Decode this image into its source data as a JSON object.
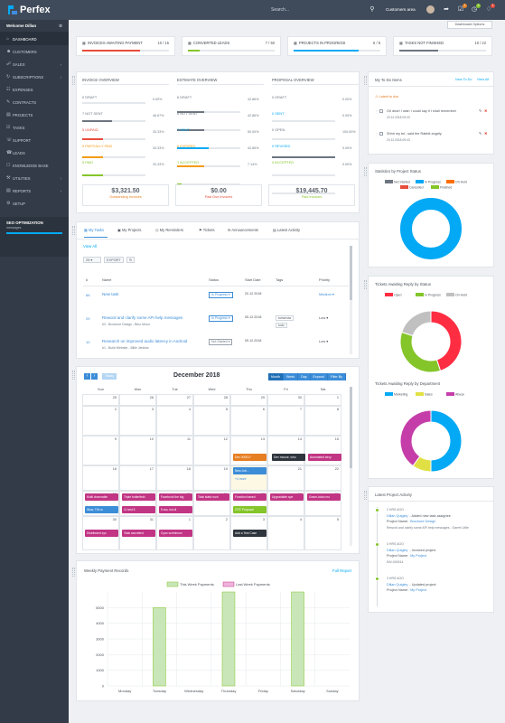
{
  "app": {
    "brand": "Perfex",
    "search_placeholder": "Search...",
    "customers_area": "Customers area",
    "dashboard_options": "Dashboard Options"
  },
  "badges": {
    "b1": "1",
    "b2": "3",
    "b3": "1"
  },
  "sidebar": {
    "user": "Welcome Dillan",
    "items": [
      "DASHBOARD",
      "CUSTOMERS",
      "SALES",
      "SUBSCRIPTIONS",
      "EXPENSES",
      "CONTRACTS",
      "PROJECTS",
      "TASKS",
      "SUPPORT",
      "LEADS",
      "KNOWLEDGE BASE",
      "UTILITIES",
      "REPORTS",
      "SETUP"
    ],
    "seo_title": "SEO OPTIMIZATION",
    "seo_sub": "messages"
  },
  "stats": [
    {
      "label": "INVOICES AWAITING PAYMENT",
      "value": "10 / 15",
      "color": "#e74c3c",
      "fill": 0.67
    },
    {
      "label": "CONVERTED LEADS",
      "value": "7 / 50",
      "color": "#84c529",
      "fill": 0.14
    },
    {
      "label": "PROJECTS IN PROGRESS",
      "value": "6 / 8",
      "color": "#03a9f4",
      "fill": 0.75
    },
    {
      "label": "TASKS NOT FINISHED",
      "value": "10 / 22",
      "color": "#6d7580",
      "fill": 0.45
    }
  ],
  "overview": {
    "invoice": {
      "title": "INVOICE OVERVIEW",
      "rows": [
        {
          "l": "0 DRAFT",
          "p": "0.00%",
          "c": "#6d7580",
          "f": 0
        },
        {
          "l": "7 NOT SENT",
          "p": "46.67%",
          "c": "#6d7580",
          "f": 0.4667
        },
        {
          "l": "5 UNPAID",
          "p": "33.33%",
          "c": "#e74c3c",
          "f": 0.3333
        },
        {
          "l": "5 PARTIALLY PAID",
          "p": "33.33%",
          "c": "#f39c12",
          "f": 0.3333
        },
        {
          "l": "5 PAID",
          "p": "33.33%",
          "c": "#84c529",
          "f": 0.3333
        }
      ]
    },
    "estimate": {
      "title": "ESTIMATE OVERVIEW",
      "rows": [
        {
          "l": "6 DRAFT",
          "p": "42.86%",
          "c": "#6d7580",
          "f": 0.4286
        },
        {
          "l": "6 NOT SENT",
          "p": "42.86%",
          "c": "#6d7580",
          "f": 0.4286
        },
        {
          "l": "7 SENT",
          "p": "50.00%",
          "c": "#03a9f4",
          "f": 0.5
        },
        {
          "l": "6 EXPIRED",
          "p": "42.86%",
          "c": "#f39c12",
          "f": 0.4286
        },
        {
          "l": "1 ACCEPTED",
          "p": "7.14%",
          "c": "#84c529",
          "f": 0.0714
        }
      ]
    },
    "proposal": {
      "title": "PROPOSAL OVERVIEW",
      "rows": [
        {
          "l": "0 DRAFT",
          "p": "0.00%",
          "c": "#6d7580",
          "f": 0
        },
        {
          "l": "0 SENT",
          "p": "0.00%",
          "c": "#03a9f4",
          "f": 0
        },
        {
          "l": "0 OPEN",
          "p": "100.00%",
          "c": "#6d7580",
          "f": 1
        },
        {
          "l": "0 REVISED",
          "p": "0.00%",
          "c": "#03a9f4",
          "f": 0
        },
        {
          "l": "0 ACCEPTED",
          "p": "0.00%",
          "c": "#84c529",
          "f": 0
        }
      ]
    },
    "totals": [
      {
        "v": "$3,321.50",
        "l": "Outstanding Invoices",
        "c": "#e67e22"
      },
      {
        "v": "$0.00",
        "l": "Past Due Invoices",
        "c": "#e74c3c"
      },
      {
        "v": "$19,445.70",
        "l": "Paid Invoices",
        "c": "#84c529"
      }
    ]
  },
  "tabs": [
    "My Tasks",
    "My Projects",
    "My Reminders",
    "Tickets",
    "Announcements",
    "Latest Activity"
  ],
  "tasks": {
    "view_all": "View All",
    "page_size": "25",
    "export": "EXPORT",
    "search": "Search...",
    "headers": [
      "#",
      "Name",
      "Status",
      "Start Date",
      "Tags",
      "Priority"
    ],
    "rows": [
      {
        "id": "66",
        "name": "New task",
        "sub": "",
        "status": "In Progress",
        "date": "20.12.2018",
        "tags": [],
        "priority": "Medium"
      },
      {
        "id": "29",
        "name": "Reword and clarify some API help messages",
        "sub": "#3 - Brochure Design - Bino Moon",
        "status": "In Progress",
        "date": "05.12.2018",
        "tags": [
          "tomorrow",
          "todo"
        ],
        "priority": "Low"
      },
      {
        "id": "10",
        "name": "Research on improved audio latency in Android",
        "sub": "#1 - Build Website - Billie Jenkins",
        "status": "Not Started",
        "date": "05.12.2018",
        "tags": [],
        "priority": "Low"
      }
    ]
  },
  "calendar": {
    "title": "December 2018",
    "today": "Today",
    "views": [
      "Month",
      "Week",
      "Day",
      "Expand",
      "Filter By"
    ],
    "days": [
      "Sun",
      "Mon",
      "Tue",
      "Wed",
      "Thu",
      "Fri",
      "Sat"
    ],
    "weeks": [
      [
        "25",
        "26",
        "27",
        "28",
        "29",
        "30",
        "1"
      ],
      [
        "2",
        "3",
        "4",
        "5",
        "6",
        "7",
        "8"
      ],
      [
        "9",
        "10",
        "11",
        "12",
        "13",
        "14",
        "15"
      ],
      [
        "16",
        "17",
        "18",
        "19",
        "20",
        "21",
        "22"
      ],
      [
        "23",
        "24",
        "25",
        "26",
        "27",
        "28",
        "29"
      ],
      [
        "30",
        "31",
        "1",
        "2",
        "3",
        "4",
        "5"
      ]
    ],
    "events": {
      "e1": "Dev 000017",
      "e2": "New Job...",
      "e3": "+4 more",
      "e4": "Dev mouse, who",
      "e5": "Automated sexy",
      "e6": "Multi channable",
      "e7": "Triple butterfield",
      "e8": "Facebook the big",
      "e9": "Total static worl",
      "e10": "Function based",
      "e11": "Upgradable spe",
      "e12": "Grace-locks mo",
      "e13": "Wow, TW-m",
      "e14": "11 test 5",
      "e15": "5 ww, not di",
      "e16": "GTE Proposal",
      "e17": "Distributed sys",
      "e18": "Total cancelled",
      "e19": "Cyan scrimimon",
      "e20": "Add a Test Case"
    }
  },
  "payments": {
    "title": "Weekly Payment Records",
    "link": "Full Report",
    "legend": [
      "This Week Payments",
      "Last Week Payments"
    ]
  },
  "chart_data": [
    {
      "type": "bar",
      "title": "",
      "categories": [
        "Monday",
        "Tuesday",
        "Wednesday",
        "Thursday",
        "Friday",
        "Saturday",
        "Sunday"
      ],
      "series": [
        {
          "name": "This Week Payments",
          "values": [
            0,
            5000,
            0,
            6000,
            0,
            6000,
            0
          ]
        },
        {
          "name": "Last Week Payments",
          "values": [
            0,
            0,
            0,
            0,
            0,
            0,
            0
          ]
        }
      ],
      "ylim": [
        0,
        6000
      ],
      "yticks": [
        "0",
        "1000",
        "2000",
        "3000",
        "4000",
        "5000"
      ]
    },
    {
      "type": "pie",
      "title": "Statistics by Project Status",
      "labels": [
        "Not Started",
        "In Progress",
        "On Hold",
        "Cancelled",
        "Finished"
      ],
      "values": [
        0,
        100,
        0,
        0,
        0
      ],
      "colors": [
        "#6d7580",
        "#03a9f4",
        "#ff6f00",
        "#e74c3c",
        "#84c529"
      ]
    },
    {
      "type": "pie",
      "title": "Tickets Awaiting Reply by Status",
      "labels": [
        "Open",
        "In Progress",
        "On Hold"
      ],
      "values": [
        45,
        35,
        20
      ],
      "colors": [
        "#ff2d42",
        "#84c529",
        "#c0c0c0"
      ]
    },
    {
      "type": "pie",
      "title": "Tickets Awaiting Reply by Department",
      "labels": [
        "Marketing",
        "Sales",
        "Abuse"
      ],
      "values": [
        50,
        10,
        40
      ],
      "colors": [
        "#03a9f4",
        "#e0e045",
        "#c53da9"
      ]
    }
  ],
  "todo": {
    "title": "My To Do Items",
    "new": "New To Do",
    "view_all": "View All",
    "latest": "Latest to dos",
    "items": [
      {
        "text": "Oh dear! I wish I could say if I shall remember",
        "date": "20.12.2018 09:43"
      },
      {
        "text": "Shhh my be', said the Rabbit angrily.",
        "date": "20.12.2018 09:43"
      }
    ]
  },
  "activity": {
    "title": "Latest Project Activity",
    "items": [
      {
        "time": "2 HRS AGO",
        "who": "Dillan Quigley",
        "action": "- Added new task assignee",
        "project_label": "Project Name:",
        "project": "Brochure Design",
        "detail": "Reword and clarify some API help messages - Garret Little"
      },
      {
        "time": "3 HRS AGO",
        "who": "Dillan Quigley",
        "action": "- Invoiced project",
        "project_label": "Project Name:",
        "project": "My Project",
        "detail": "INV-000014"
      },
      {
        "time": "3 HRS AGO",
        "who": "Dillan Quigley",
        "action": "- Updated project",
        "project_label": "Project Name:",
        "project": "My Project",
        "detail": ""
      }
    ]
  }
}
